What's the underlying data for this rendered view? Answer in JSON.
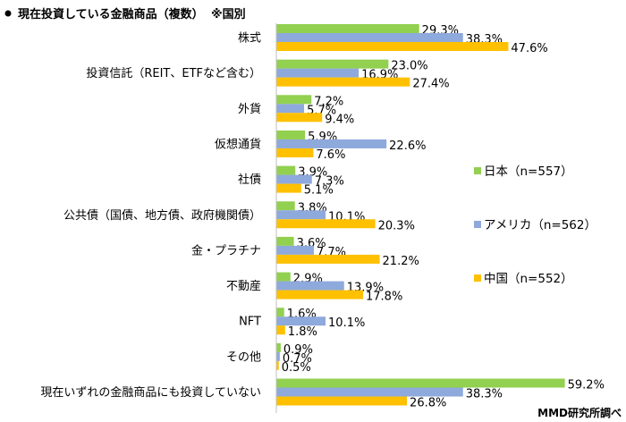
{
  "title": "現在投資している金融商品（複数）",
  "title_note": "※国別",
  "credit": "MMD研究所調べ",
  "colors": {
    "japan": "#92D050",
    "usa": "#8EA9DB",
    "china": "#FFC000",
    "axis": "#BFBFBF"
  },
  "chart_data": {
    "type": "bar",
    "orientation": "horizontal",
    "categories": [
      "株式",
      "投資信託（REIT、ETFなど含む）",
      "外貨",
      "仮想通貨",
      "社債",
      "公共債（国債、地方債、政府機関債）",
      "金・プラチナ",
      "不動産",
      "NFT",
      "その他",
      "現在いずれの金融商品にも投資していない"
    ],
    "series": [
      {
        "key": "japan",
        "name": "日本（n=557）",
        "values": [
          29.3,
          23.0,
          7.2,
          5.9,
          3.9,
          3.8,
          3.6,
          2.9,
          1.6,
          0.9,
          59.2
        ],
        "labels": [
          "29.3%",
          "23.0%",
          "7.2%",
          "5.9%",
          "3.9%",
          "3.8%",
          "3.6%",
          "2.9%",
          "1.6%",
          "0.9%",
          "59.2%"
        ]
      },
      {
        "key": "usa",
        "name": "アメリカ（n=562）",
        "values": [
          38.3,
          16.9,
          5.7,
          22.6,
          7.3,
          10.1,
          7.7,
          13.9,
          10.1,
          0.7,
          38.3
        ],
        "labels": [
          "38.3%",
          "16.9%",
          "5.7%",
          "22.6%",
          "7.3%",
          "10.1%",
          "7.7%",
          "13.9%",
          "10.1%",
          "0.7%",
          "38.3%"
        ]
      },
      {
        "key": "china",
        "name": "中国（n=552）",
        "values": [
          47.6,
          27.4,
          9.4,
          7.6,
          5.1,
          20.3,
          21.2,
          17.8,
          1.8,
          0.5,
          26.8
        ],
        "labels": [
          "47.6%",
          "27.4%",
          "9.4%",
          "7.6%",
          "5.1%",
          "20.3%",
          "21.2%",
          "17.8%",
          "1.8%",
          "0.5%",
          "26.8%"
        ]
      }
    ],
    "xlim": [
      0,
      60
    ],
    "legend_position": "right",
    "grid": false
  }
}
